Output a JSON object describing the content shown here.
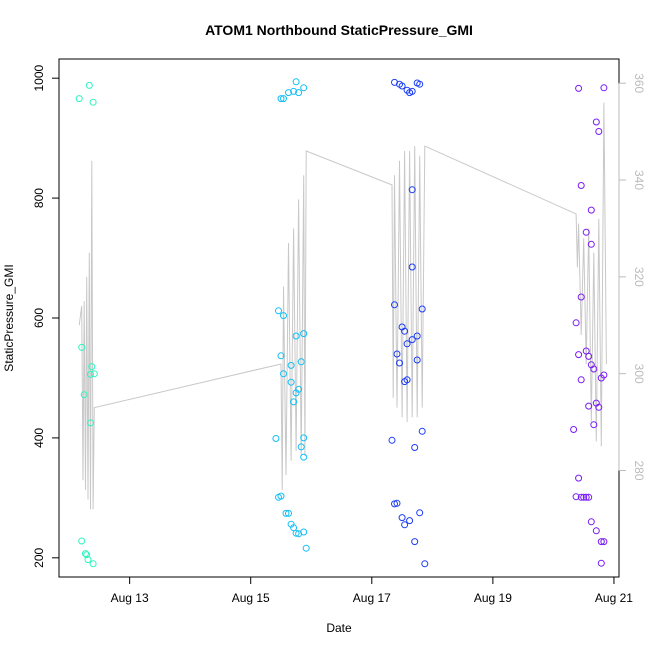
{
  "chart_data": {
    "type": "scatter",
    "title": "ATOM1 Northbound StaticPressure_GMI",
    "xlabel": "Date",
    "ylabel": "StaticPressure_GMI",
    "xlim": [
      "2019-08-11 20:00",
      "2019-08-21 02:00"
    ],
    "ylim": [
      168,
      1032
    ],
    "y2lim": [
      258,
      365
    ],
    "x_ticks": [
      {
        "label": "Aug 13",
        "value": "2019-08-13 00:00"
      },
      {
        "label": "Aug 15",
        "value": "2019-08-15 00:00"
      },
      {
        "label": "Aug 17",
        "value": "2019-08-17 00:00"
      },
      {
        "label": "Aug 19",
        "value": "2019-08-19 00:00"
      },
      {
        "label": "Aug 21",
        "value": "2019-08-21 00:00"
      }
    ],
    "y_ticks": [
      200,
      400,
      600,
      800,
      1000
    ],
    "y2_ticks": [
      280,
      300,
      320,
      340,
      360
    ],
    "grid": false,
    "series": [
      {
        "color": "#2ef5c0",
        "points": [
          [
            "2019-08-12 04:00",
            966
          ],
          [
            "2019-08-12 05:00",
            551
          ],
          [
            "2019-08-12 05:00",
            228
          ],
          [
            "2019-08-12 06:00",
            472
          ],
          [
            "2019-08-12 06:30",
            207
          ],
          [
            "2019-08-12 07:00",
            205
          ],
          [
            "2019-08-12 08:00",
            988
          ],
          [
            "2019-08-12 07:30",
            197
          ],
          [
            "2019-08-12 08:30",
            506
          ],
          [
            "2019-08-12 08:30",
            425
          ],
          [
            "2019-08-12 09:00",
            519
          ],
          [
            "2019-08-12 09:30",
            960
          ],
          [
            "2019-08-12 09:30",
            190
          ],
          [
            "2019-08-12 10:00",
            507
          ]
        ]
      },
      {
        "color": "#14bff5",
        "points": [
          [
            "2019-08-15 12:00",
            966
          ],
          [
            "2019-08-15 13:00",
            966
          ],
          [
            "2019-08-15 15:00",
            976
          ],
          [
            "2019-08-15 17:00",
            978
          ],
          [
            "2019-08-15 18:00",
            994
          ],
          [
            "2019-08-15 19:00",
            976
          ],
          [
            "2019-08-15 21:00",
            984
          ],
          [
            "2019-08-15 11:00",
            612
          ],
          [
            "2019-08-15 13:00",
            604
          ],
          [
            "2019-08-15 12:00",
            537
          ],
          [
            "2019-08-15 16:00",
            521
          ],
          [
            "2019-08-15 13:00",
            507
          ],
          [
            "2019-08-15 18:00",
            570
          ],
          [
            "2019-08-15 21:00",
            574
          ],
          [
            "2019-08-15 20:00",
            527
          ],
          [
            "2019-08-15 16:00",
            493
          ],
          [
            "2019-08-15 19:00",
            481
          ],
          [
            "2019-08-15 18:00",
            475
          ],
          [
            "2019-08-15 17:00",
            460
          ],
          [
            "2019-08-15 10:00",
            399
          ],
          [
            "2019-08-15 21:00",
            400
          ],
          [
            "2019-08-15 20:00",
            385
          ],
          [
            "2019-08-15 21:00",
            368
          ],
          [
            "2019-08-15 11:00",
            301
          ],
          [
            "2019-08-15 12:00",
            303
          ],
          [
            "2019-08-15 14:00",
            274
          ],
          [
            "2019-08-15 15:00",
            274
          ],
          [
            "2019-08-15 16:00",
            256
          ],
          [
            "2019-08-15 17:00",
            250
          ],
          [
            "2019-08-15 18:00",
            241
          ],
          [
            "2019-08-15 19:00",
            240
          ],
          [
            "2019-08-15 21:00",
            243
          ],
          [
            "2019-08-15 22:00",
            216
          ]
        ]
      },
      {
        "color": "#1c3df5",
        "points": [
          [
            "2019-08-17 09:00",
            993
          ],
          [
            "2019-08-17 11:00",
            990
          ],
          [
            "2019-08-17 12:00",
            987
          ],
          [
            "2019-08-17 14:00",
            980
          ],
          [
            "2019-08-17 15:00",
            976
          ],
          [
            "2019-08-17 16:00",
            978
          ],
          [
            "2019-08-17 18:00",
            992
          ],
          [
            "2019-08-17 19:00",
            990
          ],
          [
            "2019-08-17 16:00",
            814
          ],
          [
            "2019-08-17 16:00",
            685
          ],
          [
            "2019-08-17 09:00",
            622
          ],
          [
            "2019-08-17 20:00",
            615
          ],
          [
            "2019-08-17 12:00",
            585
          ],
          [
            "2019-08-17 13:00",
            578
          ],
          [
            "2019-08-17 18:00",
            570
          ],
          [
            "2019-08-17 16:00",
            564
          ],
          [
            "2019-08-17 14:00",
            557
          ],
          [
            "2019-08-17 10:00",
            540
          ],
          [
            "2019-08-17 18:00",
            530
          ],
          [
            "2019-08-17 11:00",
            525
          ],
          [
            "2019-08-17 13:00",
            494
          ],
          [
            "2019-08-17 14:00",
            497
          ],
          [
            "2019-08-17 20:00",
            411
          ],
          [
            "2019-08-17 08:00",
            396
          ],
          [
            "2019-08-17 17:00",
            384
          ],
          [
            "2019-08-17 09:00",
            290
          ],
          [
            "2019-08-17 10:00",
            291
          ],
          [
            "2019-08-17 12:00",
            267
          ],
          [
            "2019-08-17 15:00",
            262
          ],
          [
            "2019-08-17 13:00",
            255
          ],
          [
            "2019-08-17 19:00",
            275
          ],
          [
            "2019-08-17 17:00",
            227
          ],
          [
            "2019-08-17 21:00",
            190
          ]
        ]
      },
      {
        "color": "#7a1cf5",
        "points": [
          [
            "2019-08-20 10:00",
            983
          ],
          [
            "2019-08-20 20:00",
            984
          ],
          [
            "2019-08-20 17:00",
            927
          ],
          [
            "2019-08-20 18:00",
            911
          ],
          [
            "2019-08-20 11:00",
            821
          ],
          [
            "2019-08-20 15:00",
            780
          ],
          [
            "2019-08-20 13:00",
            743
          ],
          [
            "2019-08-20 15:00",
            723
          ],
          [
            "2019-08-20 11:00",
            635
          ],
          [
            "2019-08-20 09:00",
            592
          ],
          [
            "2019-08-20 10:00",
            539
          ],
          [
            "2019-08-20 13:00",
            545
          ],
          [
            "2019-08-20 14:00",
            536
          ],
          [
            "2019-08-20 15:00",
            522
          ],
          [
            "2019-08-20 16:00",
            515
          ],
          [
            "2019-08-20 19:00",
            500
          ],
          [
            "2019-08-20 20:00",
            505
          ],
          [
            "2019-08-20 11:00",
            497
          ],
          [
            "2019-08-20 14:00",
            453
          ],
          [
            "2019-08-20 17:00",
            458
          ],
          [
            "2019-08-20 18:00",
            451
          ],
          [
            "2019-08-20 16:00",
            422
          ],
          [
            "2019-08-20 08:00",
            414
          ],
          [
            "2019-08-20 10:00",
            333
          ],
          [
            "2019-08-20 09:00",
            302
          ],
          [
            "2019-08-20 11:00",
            301
          ],
          [
            "2019-08-20 12:00",
            301
          ],
          [
            "2019-08-20 13:00",
            301
          ],
          [
            "2019-08-20 14:00",
            301
          ],
          [
            "2019-08-20 15:00",
            260
          ],
          [
            "2019-08-20 17:00",
            245
          ],
          [
            "2019-08-20 19:00",
            227
          ],
          [
            "2019-08-20 20:00",
            227
          ],
          [
            "2019-08-20 19:00",
            191
          ]
        ]
      }
    ],
    "line_series": {
      "color": "#c8c8c8",
      "axis": "right",
      "points": [
        [
          "2019-08-12 04:00",
          310
        ],
        [
          "2019-08-12 05:00",
          314
        ],
        [
          "2019-08-12 05:30",
          278
        ],
        [
          "2019-08-12 06:00",
          315
        ],
        [
          "2019-08-12 06:30",
          276
        ],
        [
          "2019-08-12 07:00",
          320
        ],
        [
          "2019-08-12 07:30",
          274
        ],
        [
          "2019-08-12 08:00",
          325
        ],
        [
          "2019-08-12 08:30",
          272
        ],
        [
          "2019-08-12 09:00",
          344
        ],
        [
          "2019-08-12 09:30",
          272
        ],
        [
          "2019-08-12 10:00",
          293
        ],
        [
          "2019-08-15 12:00",
          302
        ],
        [
          "2019-08-15 12:30",
          276
        ],
        [
          "2019-08-15 13:00",
          318
        ],
        [
          "2019-08-15 14:00",
          279
        ],
        [
          "2019-08-15 15:00",
          327
        ],
        [
          "2019-08-15 16:00",
          282
        ],
        [
          "2019-08-15 17:00",
          330
        ],
        [
          "2019-08-15 18:00",
          284
        ],
        [
          "2019-08-15 19:00",
          336
        ],
        [
          "2019-08-15 20:00",
          283
        ],
        [
          "2019-08-15 21:00",
          341
        ],
        [
          "2019-08-15 21:30",
          283
        ],
        [
          "2019-08-15 22:00",
          346
        ],
        [
          "2019-08-17 08:00",
          339
        ],
        [
          "2019-08-17 08:30",
          295
        ],
        [
          "2019-08-17 09:00",
          341
        ],
        [
          "2019-08-17 10:00",
          293
        ],
        [
          "2019-08-17 11:00",
          344
        ],
        [
          "2019-08-17 12:00",
          291
        ],
        [
          "2019-08-17 13:00",
          346
        ],
        [
          "2019-08-17 14:00",
          290
        ],
        [
          "2019-08-17 15:00",
          346
        ],
        [
          "2019-08-17 16:00",
          291
        ],
        [
          "2019-08-17 17:00",
          347
        ],
        [
          "2019-08-17 18:00",
          291
        ],
        [
          "2019-08-17 19:00",
          345
        ],
        [
          "2019-08-17 20:00",
          293
        ],
        [
          "2019-08-17 21:00",
          347
        ],
        [
          "2019-08-20 09:00",
          333
        ],
        [
          "2019-08-20 09:30",
          322
        ],
        [
          "2019-08-20 10:00",
          331
        ],
        [
          "2019-08-20 11:00",
          308
        ],
        [
          "2019-08-20 12:00",
          328
        ],
        [
          "2019-08-20 13:00",
          302
        ],
        [
          "2019-08-20 14:00",
          330
        ],
        [
          "2019-08-20 15:00",
          290
        ],
        [
          "2019-08-20 16:00",
          325
        ],
        [
          "2019-08-20 17:00",
          286
        ],
        [
          "2019-08-20 18:00",
          332
        ],
        [
          "2019-08-20 19:00",
          285
        ],
        [
          "2019-08-20 20:00",
          356
        ],
        [
          "2019-08-20 21:00",
          302
        ]
      ]
    }
  }
}
